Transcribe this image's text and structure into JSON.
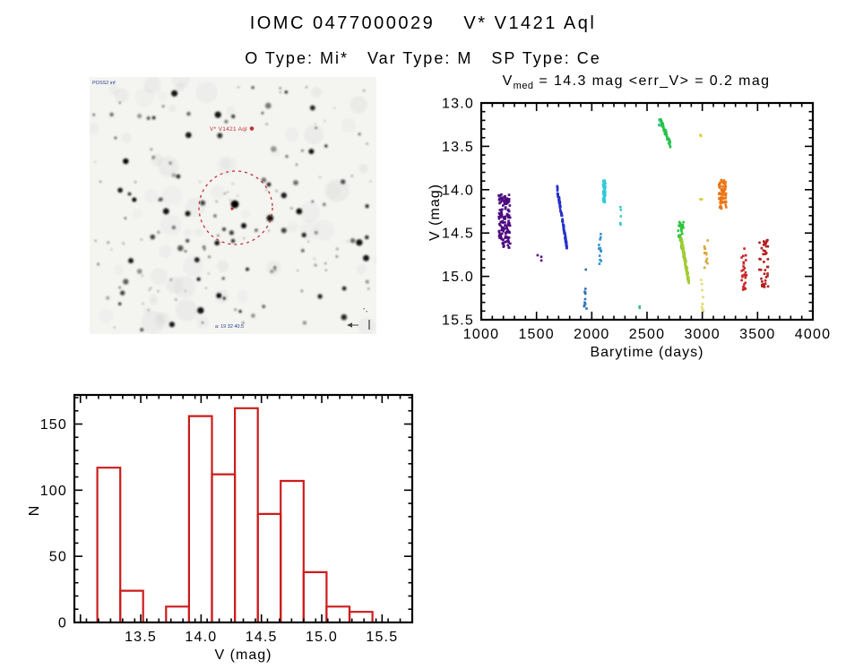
{
  "header": {
    "title": "IOMC 0477000029    V* V1421 Aql",
    "subtitle": "O Type: Mi*   Var Type: M   SP Type: Ce"
  },
  "finding_chart": {
    "survey_label": "POSS2 inf",
    "target_label": "V* V1421 Aql",
    "coord_label": "a: 19 32 40.5",
    "colors": {
      "annotation_red": "#c03030",
      "annotation_blue": "#2b3a8c",
      "background": "#f4f4f1",
      "star": "#000000"
    }
  },
  "chart_data": [
    {
      "id": "light-curve",
      "type": "scatter",
      "title_parts": {
        "base": "V",
        "sub": "med",
        "rest": " = 14.3 mag <err_V> = 0.2 mag"
      },
      "xlabel": "Barytime (days)",
      "ylabel": "V (mag)",
      "xlim": [
        1000,
        4000
      ],
      "ylim": [
        13.0,
        15.5
      ],
      "y_inverted": true,
      "grid": false,
      "xticks": [
        1000,
        1500,
        2000,
        2500,
        3000,
        3500,
        4000
      ],
      "xtick_labels": [
        "1000",
        "1500",
        "2000",
        "2500",
        "3000",
        "3500",
        "4000"
      ],
      "yticks": [
        13.0,
        13.5,
        14.0,
        14.5,
        15.0,
        15.5
      ],
      "ytick_labels": [
        "13.0",
        "13.5",
        "14.0",
        "14.5",
        "15.0",
        "15.5"
      ],
      "x_minor_step": 100,
      "y_minor_step": 0.1,
      "clusters": [
        {
          "name": "epoch-01",
          "color": "#4c0a80",
          "shape": "box",
          "n": 140,
          "t": [
            1158,
            1262
          ],
          "v": [
            14.05,
            14.67
          ]
        },
        {
          "name": "epoch-02",
          "color": "#55118c",
          "shape": "box",
          "n": 3,
          "t": [
            1505,
            1548
          ],
          "v": [
            14.7,
            14.88
          ]
        },
        {
          "name": "epoch-03",
          "color": "#2531c8",
          "shape": "diag",
          "n": 80,
          "t": [
            1686,
            1775
          ],
          "v": [
            13.98,
            14.66
          ],
          "jitter": 0.07
        },
        {
          "name": "epoch-04",
          "color": "#2f6fb8",
          "shape": "vline",
          "n": 11,
          "t": [
            1920,
            1958
          ],
          "v": [
            14.9,
            15.38
          ]
        },
        {
          "name": "epoch-05",
          "color": "#2f93c8",
          "shape": "vline",
          "n": 13,
          "t": [
            2052,
            2094
          ],
          "v": [
            14.44,
            14.86
          ]
        },
        {
          "name": "epoch-06",
          "color": "#2fc8da",
          "shape": "vline",
          "n": 55,
          "t": [
            2100,
            2128
          ],
          "v": [
            13.88,
            14.17
          ]
        },
        {
          "name": "epoch-07",
          "color": "#38cbc3",
          "shape": "vline",
          "n": 5,
          "t": [
            2256,
            2272
          ],
          "v": [
            14.17,
            14.42
          ]
        },
        {
          "name": "epoch-08",
          "color": "#37bd98",
          "shape": "box",
          "n": 2,
          "t": [
            2420,
            2438
          ],
          "v": [
            15.31,
            15.38
          ]
        },
        {
          "name": "epoch-09",
          "color": "#38bd9a",
          "shape": "box",
          "n": 3,
          "t": [
            2606,
            2618
          ],
          "v": [
            13.18,
            13.27
          ]
        },
        {
          "name": "epoch-10",
          "color": "#27c34b",
          "shape": "diag",
          "n": 55,
          "t": [
            2622,
            2710
          ],
          "v": [
            13.2,
            13.48
          ],
          "jitter": 0.06
        },
        {
          "name": "epoch-11",
          "color": "#2fc43e",
          "shape": "vline",
          "n": 28,
          "t": [
            2780,
            2833
          ],
          "v": [
            14.37,
            14.57
          ]
        },
        {
          "name": "epoch-12",
          "color": "#63c92e",
          "shape": "diag",
          "n": 45,
          "t": [
            2798,
            2845
          ],
          "v": [
            14.54,
            14.82
          ],
          "jitter": 0.08
        },
        {
          "name": "epoch-13",
          "color": "#a3cc30",
          "shape": "diag",
          "n": 75,
          "t": [
            2812,
            2878
          ],
          "v": [
            14.6,
            15.05
          ],
          "jitter": 0.1
        },
        {
          "name": "epoch-14",
          "color": "#d8ce40",
          "shape": "box",
          "n": 2,
          "t": [
            2980,
            2997
          ],
          "v": [
            13.33,
            13.41
          ]
        },
        {
          "name": "epoch-15",
          "color": "#d8ce40",
          "shape": "box",
          "n": 2,
          "t": [
            2980,
            2998
          ],
          "v": [
            14.04,
            14.13
          ]
        },
        {
          "name": "epoch-16",
          "color": "#d8a83c",
          "shape": "vline",
          "n": 13,
          "t": [
            3004,
            3058
          ],
          "v": [
            14.58,
            14.99
          ]
        },
        {
          "name": "epoch-17",
          "color": "#e4da72",
          "shape": "vline",
          "n": 9,
          "t": [
            2988,
            3018
          ],
          "v": [
            15.02,
            15.43
          ]
        },
        {
          "name": "epoch-18",
          "color": "#ec7414",
          "shape": "box",
          "n": 70,
          "t": [
            3150,
            3218
          ],
          "v": [
            13.88,
            14.22
          ]
        },
        {
          "name": "epoch-19",
          "color": "#cc2424",
          "shape": "vline",
          "n": 26,
          "t": [
            3348,
            3402
          ],
          "v": [
            14.66,
            15.22
          ]
        },
        {
          "name": "epoch-20",
          "color": "#b41d1d",
          "shape": "box",
          "n": 42,
          "t": [
            3515,
            3600
          ],
          "v": [
            14.55,
            15.13
          ]
        }
      ]
    },
    {
      "id": "histogram",
      "type": "bar",
      "title": "",
      "xlabel": "V (mag)",
      "ylabel": "N",
      "xlim": [
        12.95,
        15.75
      ],
      "ylim": [
        0,
        172
      ],
      "grid": false,
      "xticks": [
        13.0,
        13.5,
        14.0,
        14.5,
        15.0,
        15.5
      ],
      "xtick_labels": [
        "",
        "13.5",
        "14.0",
        "14.5",
        "15.0",
        "15.5"
      ],
      "yticks": [
        0,
        50,
        100,
        150
      ],
      "ytick_labels": [
        "0",
        "50",
        "100",
        "150"
      ],
      "x_minor_step": 0.1,
      "y_minor_step": 10,
      "bar_color": "#cc1c1c",
      "bin_start": 13.14,
      "bin_width": 0.19,
      "counts": [
        117,
        24,
        0,
        12,
        156,
        112,
        162,
        82,
        107,
        38,
        12,
        8
      ]
    }
  ]
}
